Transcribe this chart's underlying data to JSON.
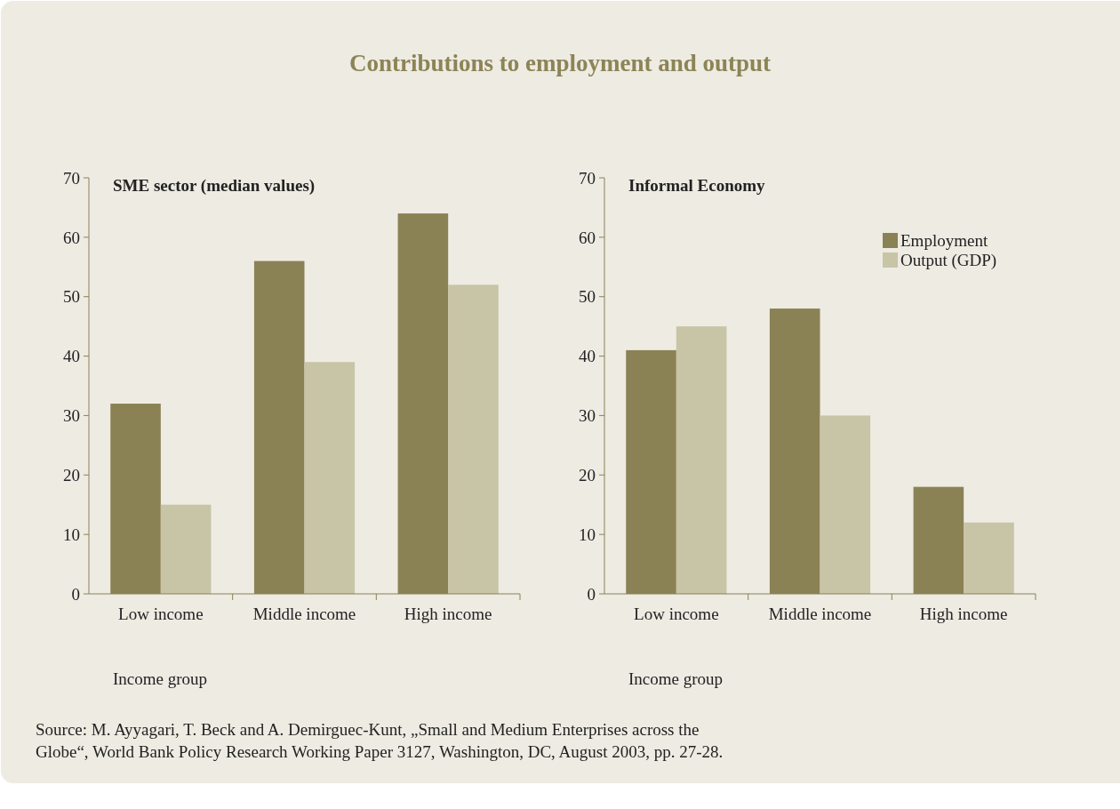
{
  "chart_data": [
    {
      "type": "bar",
      "title": "SME sector (median values)",
      "xlabel": "Income group",
      "categories": [
        "Low income",
        "Middle income",
        "High income"
      ],
      "series": [
        {
          "color": "#8a8254",
          "values": [
            32,
            56,
            64
          ]
        },
        {
          "color": "#c8c4a6",
          "values": [
            15,
            39,
            52
          ]
        }
      ],
      "ylim": [
        0,
        70
      ],
      "yticks": [
        0,
        10,
        20,
        30,
        40,
        50,
        60,
        70
      ],
      "grid": false,
      "annotations": [
        "Contributions to employment and output",
        "Source: M. Ayyagari, T. Beck and A. Demirguec-Kunt, „Small and Medium Enterprises across the Globe“, World Bank Policy Research Working Paper 3127, Washington, DC, August 2003, pp. 27-28."
      ]
    },
    {
      "type": "bar",
      "title": "Informal Economy",
      "xlabel": "Income group",
      "categories": [
        "Low income",
        "Middle income",
        "High income"
      ],
      "series": [
        {
          "name": "Employment",
          "color": "#8a8254",
          "values": [
            41,
            48,
            18
          ]
        },
        {
          "name": "Output (GDP)",
          "color": "#c8c4a6",
          "values": [
            45,
            30,
            12
          ]
        }
      ],
      "ylim": [
        0,
        70
      ],
      "yticks": [
        0,
        10,
        20,
        30,
        40,
        50,
        60,
        70
      ],
      "grid": false,
      "legend": "top right"
    }
  ]
}
